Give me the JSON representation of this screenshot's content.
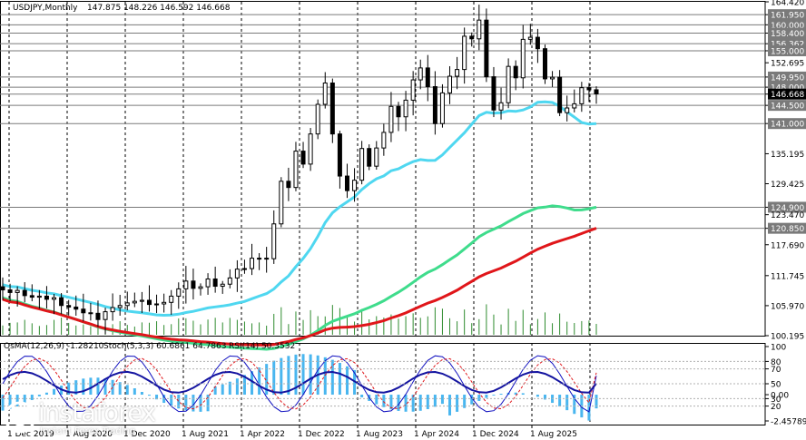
{
  "header": {
    "symbol_label": "USDJPY,Monthly",
    "ohlc": "147.875 148.226 146.592 146.668"
  },
  "indicator_header": {
    "osma": "OsMA(12,26,9) -1.28210",
    "stoch": "Stoch(5,3,3) 60.6861 64.7863",
    "rsi": "RSI(14) 50.3532"
  },
  "price_scale": [
    "164.420",
    "161.950",
    "160.000",
    "158.400",
    "156.362",
    "155.000",
    "152.695",
    "149.950",
    "148.000",
    "146.668",
    "144.500",
    "141.000",
    "135.195",
    "129.425",
    "124.900",
    "123.470",
    "120.850",
    "117.690",
    "111.745",
    "105.970",
    "100.195"
  ],
  "highlighted_levels": [
    "161.950",
    "160.000",
    "158.400",
    "156.362",
    "155.000",
    "149.950",
    "148.000",
    "146.668",
    "144.500",
    "141.000",
    "124.900",
    "120.850"
  ],
  "current_price": "146.668",
  "sub_scale": [
    "100",
    "80",
    "70",
    "50",
    "30",
    "20",
    "0.00",
    "-2.45789"
  ],
  "time_labels": [
    "1 Dec 2019",
    "1 Aug 2020",
    "1 Dec 2020",
    "1 Aug 2021",
    "1 Apr 2022",
    "1 Dec 2022",
    "1 Aug 2023",
    "1 Apr 2024",
    "1 Dec 2024",
    "1 Aug 2025"
  ],
  "watermark": {
    "brand": "instaforex",
    "tagline": "Instant Forex Trading"
  },
  "chart_data": {
    "type": "candlestick",
    "symbol": "USDJPY",
    "timeframe": "Monthly",
    "ylim": [
      100.195,
      164.42
    ],
    "closes": [
      109.0,
      108.5,
      108.9,
      107.9,
      107.6,
      107.8,
      107.2,
      107.5,
      106.0,
      105.7,
      105.3,
      104.6,
      104.5,
      103.3,
      104.8,
      105.6,
      106.0,
      106.5,
      106.8,
      107.0,
      106.2,
      106.3,
      106.6,
      107.8,
      109.2,
      110.7,
      109.3,
      109.6,
      111.1,
      109.7,
      110.1,
      111.3,
      113.0,
      113.1,
      115.1,
      115.1,
      115.0,
      121.7,
      129.9,
      128.7,
      135.7,
      133.2,
      139.0,
      144.7,
      148.8,
      139.0,
      130.9,
      128.1,
      130.1,
      136.2,
      132.8,
      136.3,
      139.3,
      144.3,
      142.3,
      145.5,
      149.4,
      151.7,
      148.1,
      141.0,
      146.9,
      150.1,
      151.4,
      157.8,
      157.3,
      160.9,
      150.0,
      143.6,
      145.0,
      152.0,
      149.8,
      157.2,
      157.6,
      155.4,
      149.6,
      149.9,
      143.1,
      144.0,
      144.8,
      147.9,
      147.5,
      146.7
    ],
    "moving_averages": [
      {
        "color": "#4fd7f0",
        "start": 110.0,
        "end": 141.0
      },
      {
        "color": "#3fdc8c",
        "start": 107.5,
        "end": 124.9
      },
      {
        "color": "#e0161a",
        "start": 107.2,
        "end": 120.85
      }
    ],
    "osma_range": [
      -2.45789,
      4.5
    ],
    "osma_last": -1.2821,
    "stochastic": [
      60.6861,
      64.7863
    ],
    "rsi": 50.3532
  },
  "colors": {
    "ma_fast": "#4fd7f0",
    "ma_mid": "#3fdc8c",
    "ma_slow": "#e0161a",
    "osma": "#49b6ef",
    "volume": "#2e8b2e",
    "stoch_main": "#1010c0",
    "stoch_signal": "#e0161a"
  }
}
